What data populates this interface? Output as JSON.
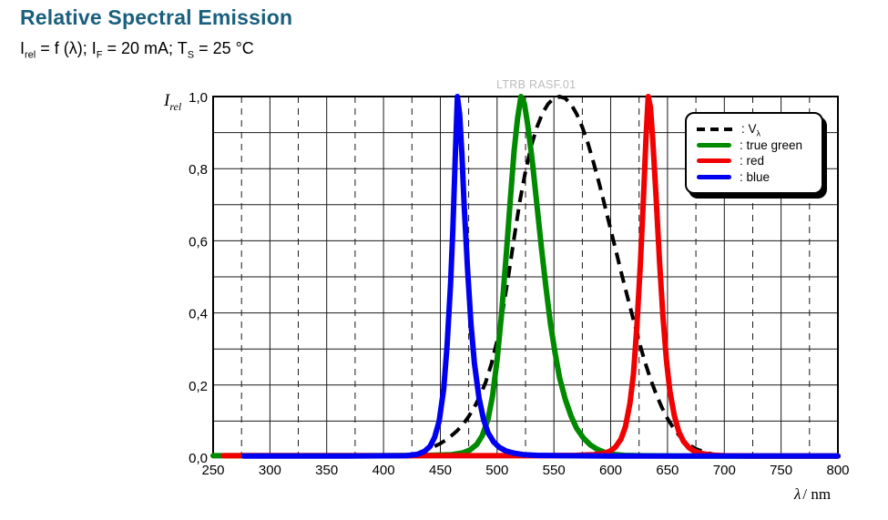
{
  "header": {
    "title": "Relative Spectral Emission",
    "conditions": {
      "p1": "I",
      "s1": "rel",
      "p2": " = f (λ); I",
      "s2": "F",
      "p3": " = 20 mA; T",
      "s3": "S",
      "p4": " = 25 °C"
    }
  },
  "chart": {
    "watermark": "LTRB RASF.01",
    "ylabel": {
      "base": "I",
      "sub": "rel"
    },
    "xlabel": {
      "italic": "λ",
      "rest": "/ nm"
    },
    "x_tick_labels": [
      "250",
      "300",
      "350",
      "400",
      "450",
      "500",
      "550",
      "600",
      "650",
      "700",
      "750",
      "800"
    ],
    "y_tick_labels": [
      "0,0",
      "0,2",
      "0,4",
      "0,6",
      "0,8",
      "1,0"
    ]
  },
  "legend": {
    "items": [
      {
        "key": "v-lambda",
        "label": ": V",
        "sub": "λ",
        "color": "#000000",
        "dash": true
      },
      {
        "key": "true-green",
        "label": ": true green",
        "sub": "",
        "color": "#008a00",
        "dash": false
      },
      {
        "key": "red",
        "label": ": red",
        "sub": "",
        "color": "#f00000",
        "dash": false
      },
      {
        "key": "blue",
        "label": ": blue",
        "sub": "",
        "color": "#0000f0",
        "dash": false
      }
    ]
  },
  "chart_data": {
    "type": "line",
    "title": "Relative Spectral Emission",
    "xlabel": "λ / nm",
    "ylabel": "I_rel",
    "xlim": [
      250,
      800
    ],
    "ylim": [
      0,
      1
    ],
    "x_major_step": 50,
    "x_minor_step": 25,
    "y_grid_step": 0.1,
    "y_label_step": 0.2,
    "grid": true,
    "legend_position": "top-right",
    "series": [
      {
        "key": "v-lambda",
        "name": "Vλ",
        "color": "#000000",
        "style": "dashed",
        "points": [
          [
            445,
            0.03
          ],
          [
            450,
            0.038
          ],
          [
            455,
            0.048
          ],
          [
            460,
            0.06
          ],
          [
            465,
            0.074
          ],
          [
            470,
            0.091
          ],
          [
            475,
            0.113
          ],
          [
            480,
            0.139
          ],
          [
            485,
            0.17
          ],
          [
            490,
            0.208
          ],
          [
            495,
            0.259
          ],
          [
            500,
            0.323
          ],
          [
            505,
            0.407
          ],
          [
            510,
            0.503
          ],
          [
            515,
            0.608
          ],
          [
            520,
            0.71
          ],
          [
            525,
            0.793
          ],
          [
            530,
            0.862
          ],
          [
            535,
            0.915
          ],
          [
            540,
            0.954
          ],
          [
            545,
            0.98
          ],
          [
            550,
            0.995
          ],
          [
            555,
            1.0
          ],
          [
            560,
            0.995
          ],
          [
            565,
            0.979
          ],
          [
            570,
            0.952
          ],
          [
            575,
            0.915
          ],
          [
            580,
            0.87
          ],
          [
            585,
            0.816
          ],
          [
            590,
            0.757
          ],
          [
            595,
            0.695
          ],
          [
            600,
            0.631
          ],
          [
            605,
            0.567
          ],
          [
            610,
            0.503
          ],
          [
            615,
            0.441
          ],
          [
            620,
            0.381
          ],
          [
            625,
            0.321
          ],
          [
            630,
            0.265
          ],
          [
            635,
            0.217
          ],
          [
            640,
            0.175
          ],
          [
            645,
            0.138
          ],
          [
            650,
            0.107
          ],
          [
            655,
            0.082
          ],
          [
            660,
            0.061
          ],
          [
            665,
            0.044
          ],
          [
            670,
            0.032
          ],
          [
            675,
            0.023
          ],
          [
            680,
            0.017
          ],
          [
            685,
            0.012
          ],
          [
            690,
            0.008
          ],
          [
            695,
            0.006
          ],
          [
            700,
            0.004
          ],
          [
            710,
            0.002
          ],
          [
            720,
            0.001
          ]
        ]
      },
      {
        "key": "true-green",
        "name": "true green",
        "color": "#008a00",
        "style": "solid",
        "points": [
          [
            250,
            0.004
          ],
          [
            300,
            0.004
          ],
          [
            350,
            0.004
          ],
          [
            400,
            0.004
          ],
          [
            440,
            0.005
          ],
          [
            460,
            0.007
          ],
          [
            470,
            0.012
          ],
          [
            476,
            0.02
          ],
          [
            482,
            0.035
          ],
          [
            487,
            0.06
          ],
          [
            492,
            0.105
          ],
          [
            496,
            0.17
          ],
          [
            500,
            0.27
          ],
          [
            504,
            0.4
          ],
          [
            508,
            0.56
          ],
          [
            512,
            0.73
          ],
          [
            515,
            0.85
          ],
          [
            518,
            0.94
          ],
          [
            521,
            1.0
          ],
          [
            524,
            0.98
          ],
          [
            527,
            0.92
          ],
          [
            531,
            0.82
          ],
          [
            535,
            0.7
          ],
          [
            539,
            0.58
          ],
          [
            543,
            0.47
          ],
          [
            547,
            0.37
          ],
          [
            551,
            0.29
          ],
          [
            555,
            0.22
          ],
          [
            560,
            0.16
          ],
          [
            565,
            0.115
          ],
          [
            570,
            0.08
          ],
          [
            576,
            0.053
          ],
          [
            582,
            0.034
          ],
          [
            588,
            0.022
          ],
          [
            595,
            0.013
          ],
          [
            602,
            0.008
          ],
          [
            612,
            0.005
          ],
          [
            625,
            0.004
          ],
          [
            660,
            0.003
          ],
          [
            800,
            0.003
          ]
        ]
      },
      {
        "key": "red",
        "name": "red",
        "color": "#f00000",
        "style": "solid",
        "points": [
          [
            259,
            0.004
          ],
          [
            350,
            0.004
          ],
          [
            450,
            0.004
          ],
          [
            540,
            0.004
          ],
          [
            570,
            0.005
          ],
          [
            585,
            0.007
          ],
          [
            593,
            0.01
          ],
          [
            599,
            0.016
          ],
          [
            604,
            0.027
          ],
          [
            609,
            0.05
          ],
          [
            613,
            0.085
          ],
          [
            617,
            0.15
          ],
          [
            620,
            0.23
          ],
          [
            623,
            0.36
          ],
          [
            626,
            0.53
          ],
          [
            629,
            0.73
          ],
          [
            631,
            0.88
          ],
          [
            633,
            1.0
          ],
          [
            635,
            0.97
          ],
          [
            637,
            0.88
          ],
          [
            640,
            0.72
          ],
          [
            643,
            0.54
          ],
          [
            646,
            0.39
          ],
          [
            649,
            0.27
          ],
          [
            652,
            0.185
          ],
          [
            656,
            0.115
          ],
          [
            660,
            0.07
          ],
          [
            664,
            0.044
          ],
          [
            669,
            0.026
          ],
          [
            674,
            0.016
          ],
          [
            680,
            0.01
          ],
          [
            688,
            0.006
          ],
          [
            700,
            0.004
          ],
          [
            730,
            0.003
          ],
          [
            800,
            0.003
          ]
        ]
      },
      {
        "key": "blue",
        "name": "blue",
        "color": "#0000f0",
        "style": "solid",
        "points": [
          [
            277,
            0.003
          ],
          [
            350,
            0.003
          ],
          [
            420,
            0.004
          ],
          [
            430,
            0.008
          ],
          [
            436,
            0.016
          ],
          [
            441,
            0.03
          ],
          [
            445,
            0.055
          ],
          [
            449,
            0.1
          ],
          [
            453,
            0.19
          ],
          [
            456,
            0.31
          ],
          [
            459,
            0.48
          ],
          [
            461,
            0.63
          ],
          [
            463,
            0.82
          ],
          [
            465,
            1.0
          ],
          [
            467,
            0.95
          ],
          [
            469,
            0.84
          ],
          [
            471,
            0.7
          ],
          [
            474,
            0.52
          ],
          [
            477,
            0.37
          ],
          [
            480,
            0.26
          ],
          [
            484,
            0.165
          ],
          [
            488,
            0.105
          ],
          [
            492,
            0.068
          ],
          [
            497,
            0.042
          ],
          [
            502,
            0.027
          ],
          [
            508,
            0.017
          ],
          [
            515,
            0.011
          ],
          [
            523,
            0.007
          ],
          [
            535,
            0.005
          ],
          [
            555,
            0.004
          ],
          [
            600,
            0.003
          ],
          [
            800,
            0.003
          ]
        ]
      }
    ]
  }
}
